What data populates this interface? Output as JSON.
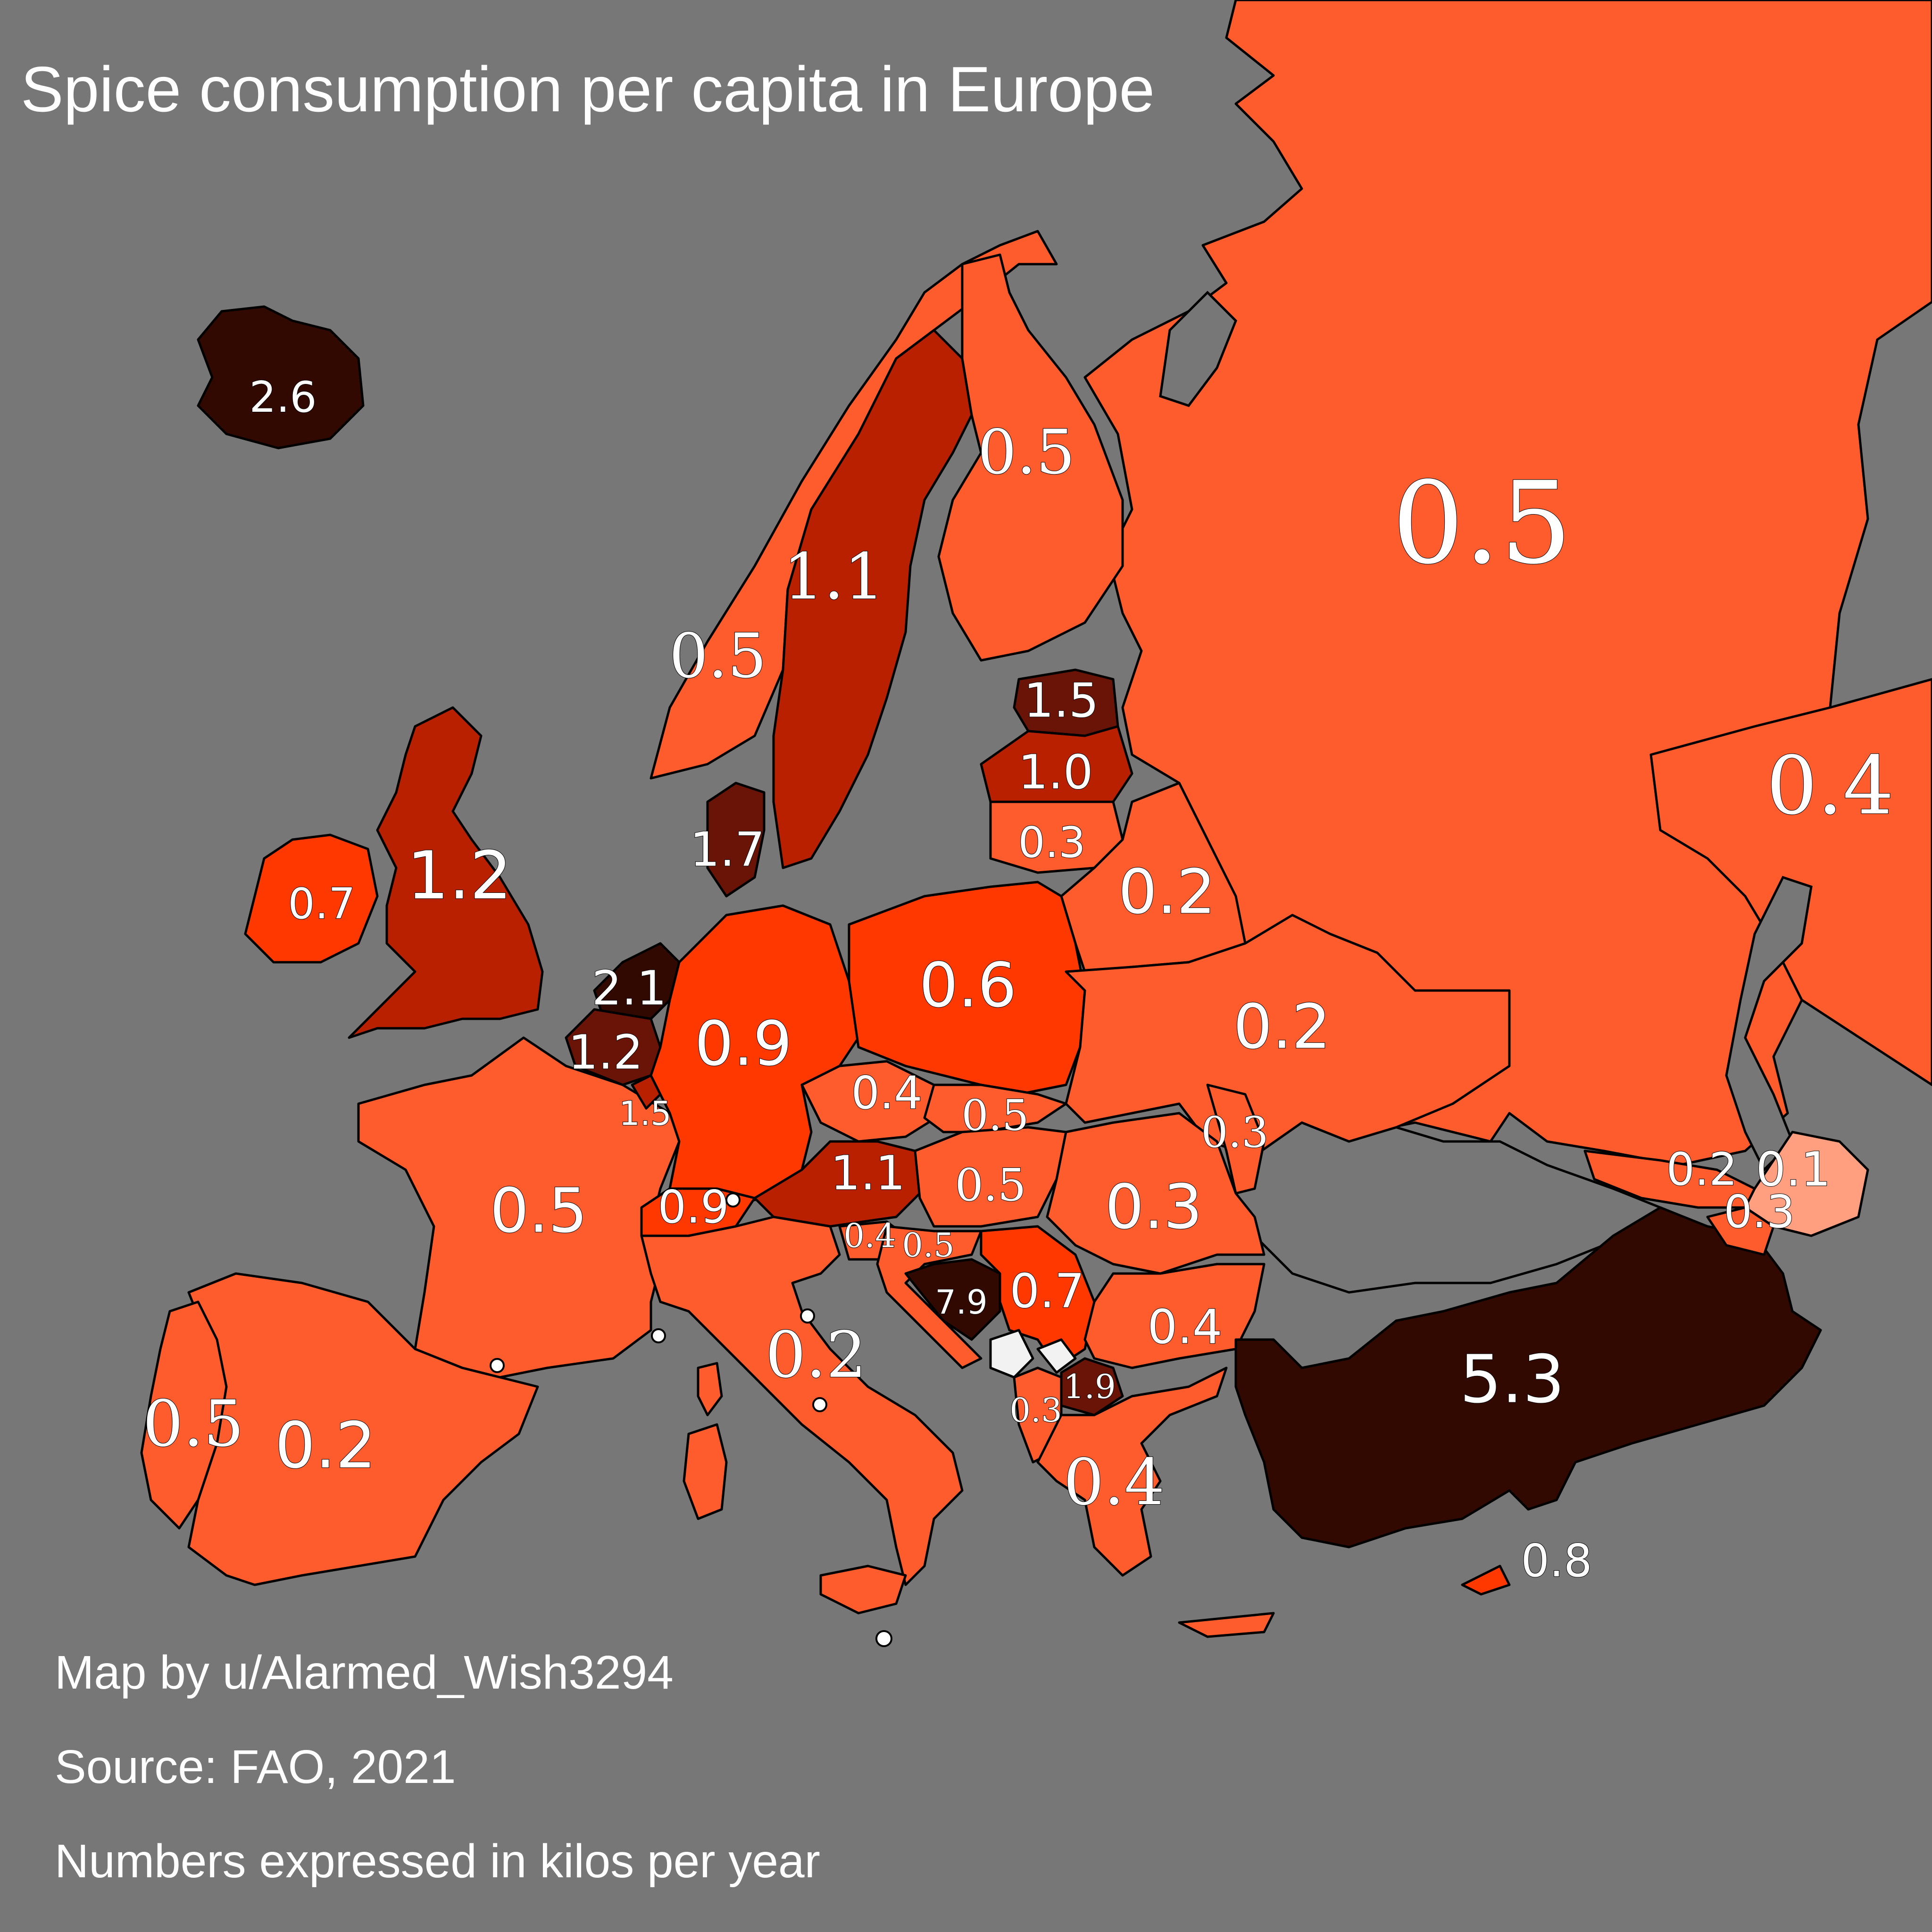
{
  "title": "Spice consumption per capita in Europe",
  "footer": {
    "credit": "Map by u/Alarmed_Wish3294",
    "source": "Source: FAO, 2021",
    "units": "Numbers expressed in kilos per year"
  },
  "colors": {
    "background": "#777777",
    "sea": "#777777",
    "no_data": "#f2f2f2",
    "scale": {
      "0.1": "#ff9f80",
      "0.2-0.5": "#ff5c2e",
      "0.6-0.9": "#ff3800",
      "1.0-1.7": "#b82000",
      "1.9-2.1": "#6a1408",
      "2.6+": "#320900"
    }
  },
  "countries": [
    {
      "name": "Iceland",
      "value": "2.6"
    },
    {
      "name": "Norway",
      "value": "0.5"
    },
    {
      "name": "Sweden",
      "value": "1.1"
    },
    {
      "name": "Finland",
      "value": "0.5"
    },
    {
      "name": "Russia",
      "value": "0.5"
    },
    {
      "name": "Kazakhstan",
      "value": "0.4"
    },
    {
      "name": "Estonia",
      "value": "1.5"
    },
    {
      "name": "Latvia",
      "value": "1.0"
    },
    {
      "name": "Lithuania",
      "value": "0.3"
    },
    {
      "name": "Belarus",
      "value": "0.2"
    },
    {
      "name": "Ireland",
      "value": "0.7"
    },
    {
      "name": "United Kingdom",
      "value": "1.2"
    },
    {
      "name": "Denmark",
      "value": "1.7"
    },
    {
      "name": "Netherlands",
      "value": "2.1"
    },
    {
      "name": "Belgium",
      "value": "1.2"
    },
    {
      "name": "Luxembourg",
      "value": "1.5"
    },
    {
      "name": "Germany",
      "value": "0.9"
    },
    {
      "name": "Poland",
      "value": "0.6"
    },
    {
      "name": "Ukraine",
      "value": "0.2"
    },
    {
      "name": "Czechia",
      "value": "0.4"
    },
    {
      "name": "Slovakia",
      "value": "0.5"
    },
    {
      "name": "Moldova",
      "value": "0.3"
    },
    {
      "name": "France",
      "value": "0.5"
    },
    {
      "name": "Switzerland",
      "value": "0.9"
    },
    {
      "name": "Austria",
      "value": "1.1"
    },
    {
      "name": "Hungary",
      "value": "0.5"
    },
    {
      "name": "Romania",
      "value": "0.3"
    },
    {
      "name": "Slovenia",
      "value": "0.4"
    },
    {
      "name": "Croatia",
      "value": "0.5"
    },
    {
      "name": "Bosnia and Herzegovina",
      "value": "7.9"
    },
    {
      "name": "Serbia",
      "value": "0.7"
    },
    {
      "name": "Bulgaria",
      "value": "0.4"
    },
    {
      "name": "Georgia",
      "value": "0.2"
    },
    {
      "name": "Azerbaijan",
      "value": "0.1"
    },
    {
      "name": "Armenia",
      "value": "0.3"
    },
    {
      "name": "Italy",
      "value": "0.2"
    },
    {
      "name": "Portugal",
      "value": "0.5"
    },
    {
      "name": "Spain",
      "value": "0.2"
    },
    {
      "name": "Turkey",
      "value": "5.3"
    },
    {
      "name": "North Macedonia",
      "value": "1.9"
    },
    {
      "name": "Albania",
      "value": "0.3"
    },
    {
      "name": "Greece",
      "value": "0.4"
    },
    {
      "name": "Cyprus",
      "value": "0.8"
    }
  ]
}
